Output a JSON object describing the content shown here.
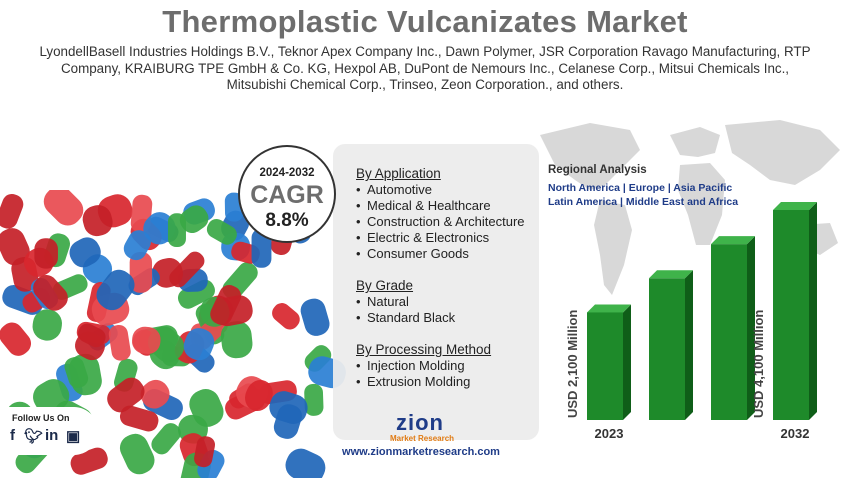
{
  "header": {
    "title": "Thermoplastic Vulcanizates Market",
    "companies_lines": [
      "LyondellBasell Industries Holdings B.V., Teknor Apex Company Inc., Dawn Polymer, JSR Corporation Ravago Manufacturing, RTP",
      "Company, KRAIBURG TPE GmbH & Co. KG, Hexpol AB, DuPont de Nemours Inc., Celanese Corp., Mitsui Chemicals Inc.,",
      "Mitsubishi Chemical Corp., Trinseo, Zeon Corporation., and others."
    ]
  },
  "cagr": {
    "years": "2024-2032",
    "label": "CAGR",
    "value": "8.8%"
  },
  "segments": [
    {
      "title": "By Application",
      "items": [
        "Automotive",
        "Medical & Healthcare",
        "Construction & Architecture",
        "Electric & Electronics",
        "Consumer Goods"
      ]
    },
    {
      "title": "By Grade",
      "items": [
        "Natural",
        "Standard Black"
      ]
    },
    {
      "title": "By Processing Method",
      "items": [
        "Injection Molding",
        "Extrusion Molding"
      ]
    }
  ],
  "regional": {
    "title": "Regional Analysis",
    "lines": [
      "North America | Europe | Asia Pacific",
      "Latin America | Middle East and Africa"
    ]
  },
  "colors": {
    "bar_front": "#1e8a2a",
    "bar_side": "#0f5e18",
    "bar_top": "#3fb34a",
    "title_gray": "#6d6d6d",
    "brand_blue": "#1f3c88",
    "brand_orange": "#e07b14"
  },
  "chart_data": {
    "type": "bar",
    "categories": [
      "2023",
      "",
      "",
      "2032"
    ],
    "values": [
      2100,
      null,
      null,
      4100
    ],
    "data_labels": [
      "USD 2,100 Million",
      "",
      "",
      "USD 4,100 Million"
    ],
    "unit": "USD Million"
  },
  "social": {
    "label": "Follow Us On",
    "icons": [
      "facebook-icon",
      "twitter-icon",
      "linkedin-icon",
      "instagram-icon"
    ]
  },
  "footer": {
    "logo_text": "zion",
    "logo_sub": "Market Research",
    "url": "www.zionmarketresearch.com"
  }
}
